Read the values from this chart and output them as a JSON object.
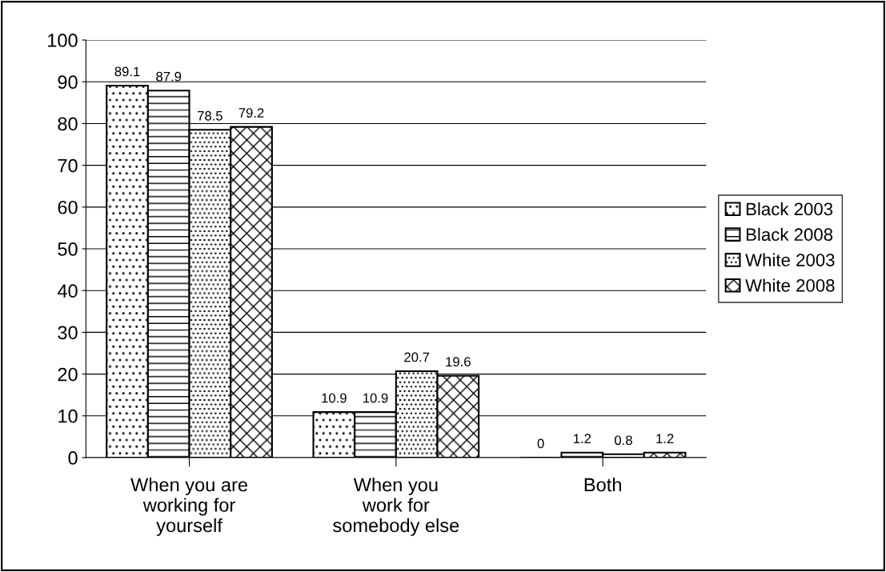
{
  "chart_data": {
    "type": "bar",
    "categories": [
      "When you are\nworking for\nyourself",
      "When you\nwork for\nsomebody else",
      "Both"
    ],
    "series": [
      {
        "name": "Black 2003",
        "color": "#000000",
        "values": [
          89.1,
          10.9,
          0
        ]
      },
      {
        "name": "Black 2008",
        "color": "#000000",
        "values": [
          87.9,
          10.9,
          1.2
        ]
      },
      {
        "name": "White 2003",
        "color": "#000000",
        "values": [
          78.5,
          20.7,
          0.8
        ]
      },
      {
        "name": "White 2008",
        "color": "#000000",
        "values": [
          79.2,
          19.6,
          1.2
        ]
      }
    ],
    "ylim": [
      0,
      100
    ],
    "yticks": [
      0,
      10,
      20,
      30,
      40,
      50,
      60,
      70,
      80,
      90,
      100
    ],
    "grid": "y",
    "legend": "right",
    "data_labels": true
  }
}
